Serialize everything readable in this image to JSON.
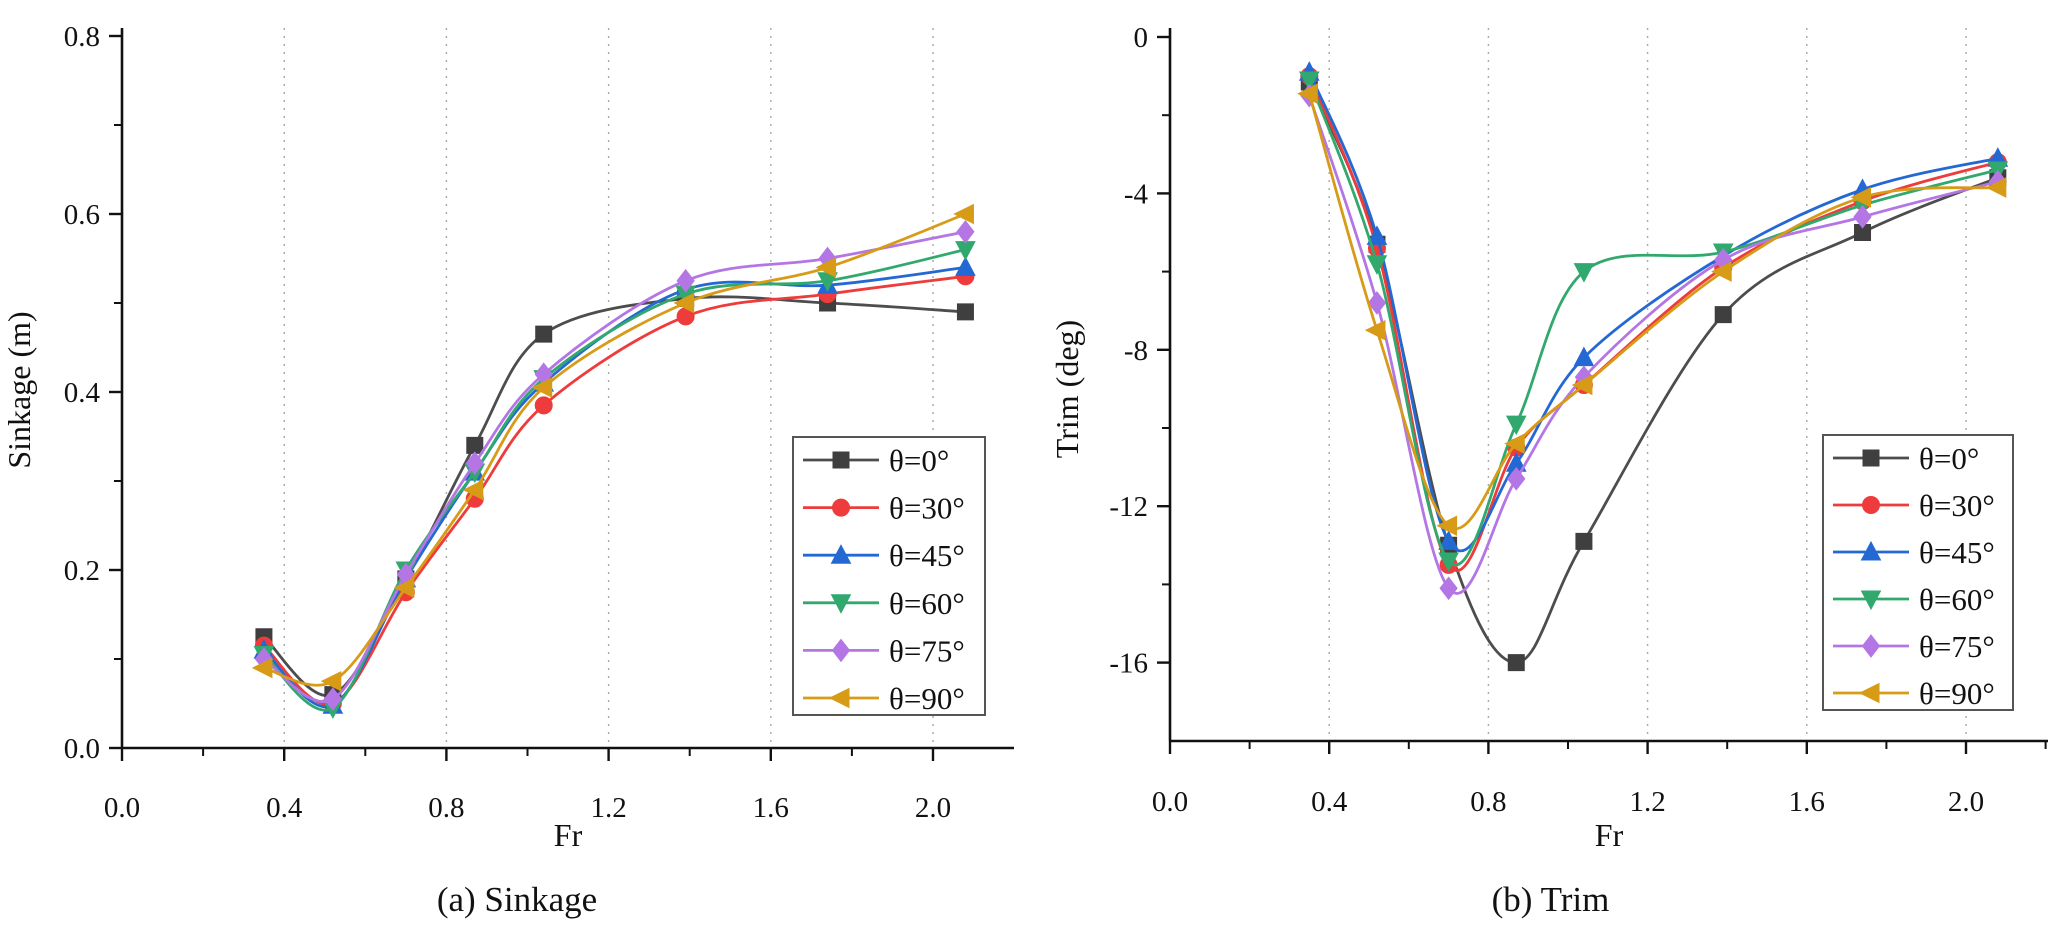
{
  "figure": {
    "left_caption": "(a) Sinkage",
    "right_caption": "(b) Trim"
  },
  "chart_data": [
    {
      "type": "line",
      "caption": "(a) Sinkage",
      "xlabel": "Fr",
      "ylabel": "Sinkage (m)",
      "xlim": [
        0.0,
        2.2
      ],
      "ylim": [
        0.0,
        0.8
      ],
      "grid": {
        "style": "vertical-dashed",
        "at": [
          0.4,
          0.8,
          1.2,
          1.6,
          2.0
        ]
      },
      "legend_position": "inside-lower-right",
      "x_ticks": {
        "values": [
          0.0,
          0.4,
          0.8,
          1.2,
          1.6,
          2.0
        ],
        "labels": [
          "0.0",
          "0.4",
          "0.8",
          "1.2",
          "1.6",
          "2.0"
        ]
      },
      "y_ticks": {
        "values": [
          0.0,
          0.2,
          0.4,
          0.6,
          0.8
        ],
        "labels": [
          "0.0",
          "0.2",
          "0.4",
          "0.6",
          "0.8"
        ]
      },
      "x": [
        0.35,
        0.52,
        0.7,
        0.87,
        1.04,
        1.39,
        1.74,
        2.08
      ],
      "series": [
        {
          "name": "θ=0°",
          "marker": "square",
          "color": "#3f3f3f",
          "line_color": "#4d4d4d",
          "values": [
            0.125,
            0.06,
            0.19,
            0.34,
            0.465,
            0.505,
            0.5,
            0.49
          ]
        },
        {
          "name": "θ=30°",
          "marker": "circle",
          "color": "#ee3b3b",
          "line_color": "#ee3b3b",
          "values": [
            0.115,
            0.05,
            0.175,
            0.28,
            0.385,
            0.485,
            0.51,
            0.53
          ]
        },
        {
          "name": "θ=45°",
          "marker": "triangle-up",
          "color": "#2469d3",
          "line_color": "#2469d3",
          "values": [
            0.11,
            0.048,
            0.19,
            0.31,
            0.41,
            0.515,
            0.52,
            0.54
          ]
        },
        {
          "name": "θ=60°",
          "marker": "triangle-down",
          "color": "#31a96e",
          "line_color": "#31a96e",
          "values": [
            0.105,
            0.045,
            0.2,
            0.31,
            0.415,
            0.51,
            0.525,
            0.56
          ]
        },
        {
          "name": "θ=75°",
          "marker": "diamond",
          "color": "#b476e4",
          "line_color": "#b476e4",
          "values": [
            0.1,
            0.055,
            0.195,
            0.32,
            0.42,
            0.525,
            0.55,
            0.58
          ]
        },
        {
          "name": "θ=90°",
          "marker": "triangle-left",
          "color": "#d79b17",
          "line_color": "#d79b17",
          "values": [
            0.09,
            0.075,
            0.18,
            0.29,
            0.405,
            0.5,
            0.54,
            0.6
          ]
        }
      ]
    },
    {
      "type": "line",
      "caption": "(b) Trim",
      "xlabel": "Fr",
      "ylabel": "Trim (deg)",
      "xlim": [
        0.0,
        2.2
      ],
      "ylim": [
        -18.0,
        0.0
      ],
      "grid": {
        "style": "vertical-dashed",
        "at": [
          0.4,
          0.8,
          1.2,
          1.6,
          2.0
        ]
      },
      "legend_position": "inside-lower-right",
      "x_ticks": {
        "values": [
          0.0,
          0.4,
          0.8,
          1.2,
          1.6,
          2.0
        ],
        "labels": [
          "0.0",
          "0.4",
          "0.8",
          "1.2",
          "1.6",
          "2.0"
        ]
      },
      "y_ticks": {
        "values": [
          0,
          -4,
          -8,
          -12,
          -16
        ],
        "labels": [
          "0",
          "-4",
          "-8",
          "-12",
          "-16"
        ]
      },
      "x": [
        0.35,
        0.52,
        0.7,
        0.87,
        1.04,
        1.39,
        1.74,
        2.08
      ],
      "series": [
        {
          "name": "θ=0°",
          "marker": "square",
          "color": "#3f3f3f",
          "line_color": "#4d4d4d",
          "values": [
            -1.15,
            -5.3,
            -13.0,
            -16.0,
            -12.9,
            -7.1,
            -5.0,
            -3.6
          ]
        },
        {
          "name": "θ=30°",
          "marker": "circle",
          "color": "#ee3b3b",
          "line_color": "#ee3b3b",
          "values": [
            -1.0,
            -5.4,
            -13.5,
            -10.5,
            -8.9,
            -5.9,
            -4.2,
            -3.2
          ]
        },
        {
          "name": "θ=45°",
          "marker": "triangle-up",
          "color": "#2469d3",
          "line_color": "#2469d3",
          "values": [
            -0.9,
            -5.1,
            -12.9,
            -10.9,
            -8.2,
            -5.6,
            -3.9,
            -3.1
          ]
        },
        {
          "name": "θ=60°",
          "marker": "triangle-down",
          "color": "#31a96e",
          "line_color": "#31a96e",
          "values": [
            -1.1,
            -5.8,
            -13.4,
            -9.9,
            -6.0,
            -5.5,
            -4.3,
            -3.4
          ]
        },
        {
          "name": "θ=75°",
          "marker": "diamond",
          "color": "#b476e4",
          "line_color": "#b476e4",
          "values": [
            -1.5,
            -6.8,
            -14.1,
            -11.3,
            -8.7,
            -5.7,
            -4.6,
            -3.7
          ]
        },
        {
          "name": "θ=90°",
          "marker": "triangle-left",
          "color": "#d79b17",
          "line_color": "#d79b17",
          "values": [
            -1.45,
            -7.5,
            -12.5,
            -10.4,
            -8.9,
            -6.0,
            -4.1,
            -3.85
          ]
        }
      ]
    }
  ]
}
